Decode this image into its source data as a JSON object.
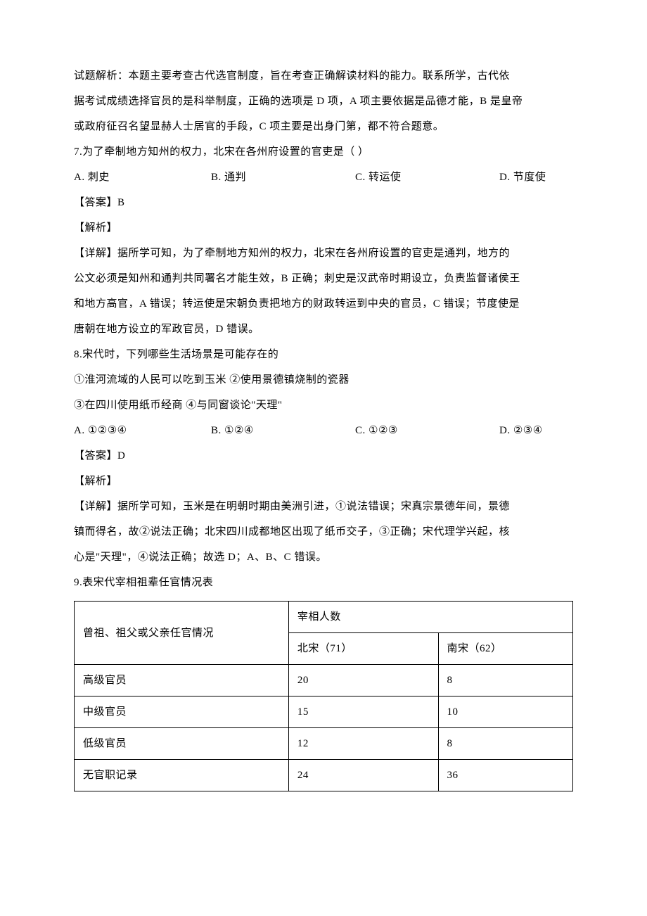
{
  "intro_para": {
    "line1": "试题解析：本题主要考查古代选官制度，旨在考查正确解读材料的能力。联系所学，古代依",
    "line2": "据考试成绩选择官员的是科举制度，正确的选项是 D 项，A 项主要依据是品德才能，B 是皇帝",
    "line3": "或政府征召名望显赫人士居官的手段，C 项主要是出身门第，都不符合题意。"
  },
  "q7": {
    "stem": "7.为了牵制地方知州的权力，北宋在各州府设置的官吏是（    ）",
    "options": {
      "a": "A. 刺史",
      "b": "B. 通判",
      "c": "C. 转运使",
      "d": "D. 节度使"
    },
    "answer": "【答案】B",
    "analysis_label": "【解析】",
    "detail_line1": "【详解】据所学可知，为了牵制地方知州的权力，北宋在各州府设置的官吏是通判，地方的",
    "detail_line2": "公文必须是知州和通判共同署名才能生效，B 正确；刺史是汉武帝时期设立，负责监督诸侯王",
    "detail_line3": "和地方高官，A 错误；转运使是宋朝负责把地方的财政转运到中央的官员，C 错误；节度使是",
    "detail_line4": "唐朝在地方设立的军政官员，D 错误。"
  },
  "q8": {
    "stem": "8.宋代时，下列哪些生活场景是可能存在的",
    "line_items1": "①淮河流域的人民可以吃到玉米  ②使用景德镇烧制的瓷器",
    "line_items2": "③在四川使用纸币经商  ④与同窗谈论\"天理\"",
    "options": {
      "a": "A. ①②③④",
      "b": "B. ①②④",
      "c": "C. ①②③",
      "d": "D. ②③④"
    },
    "answer": "【答案】D",
    "analysis_label": "【解析】",
    "detail_line1": "【详解】据所学可知，玉米是在明朝时期由美洲引进，①说法错误；宋真宗景德年间，景德",
    "detail_line2": "镇而得名，故②说法正确；北宋四川成都地区出现了纸币交子，③正确；宋代理学兴起，核",
    "detail_line3": "心是\"天理\"，④说法正确；故选 D；A、B、C 错误。"
  },
  "q9": {
    "stem": "9.表宋代宰相祖辈任官情况表",
    "table": {
      "header_row_label": "曾祖、祖父或父亲任官情况",
      "header_group": "宰相人数",
      "col1": "北宋（71）",
      "col2": "南宋（62）",
      "rows": [
        {
          "label": "高级官员",
          "bs": "20",
          "ns": "8"
        },
        {
          "label": "中级官员",
          "bs": "15",
          "ns": "10"
        },
        {
          "label": "低级官员",
          "bs": "12",
          "ns": "8"
        },
        {
          "label": "无官职记录",
          "bs": "24",
          "ns": "36"
        }
      ]
    }
  }
}
